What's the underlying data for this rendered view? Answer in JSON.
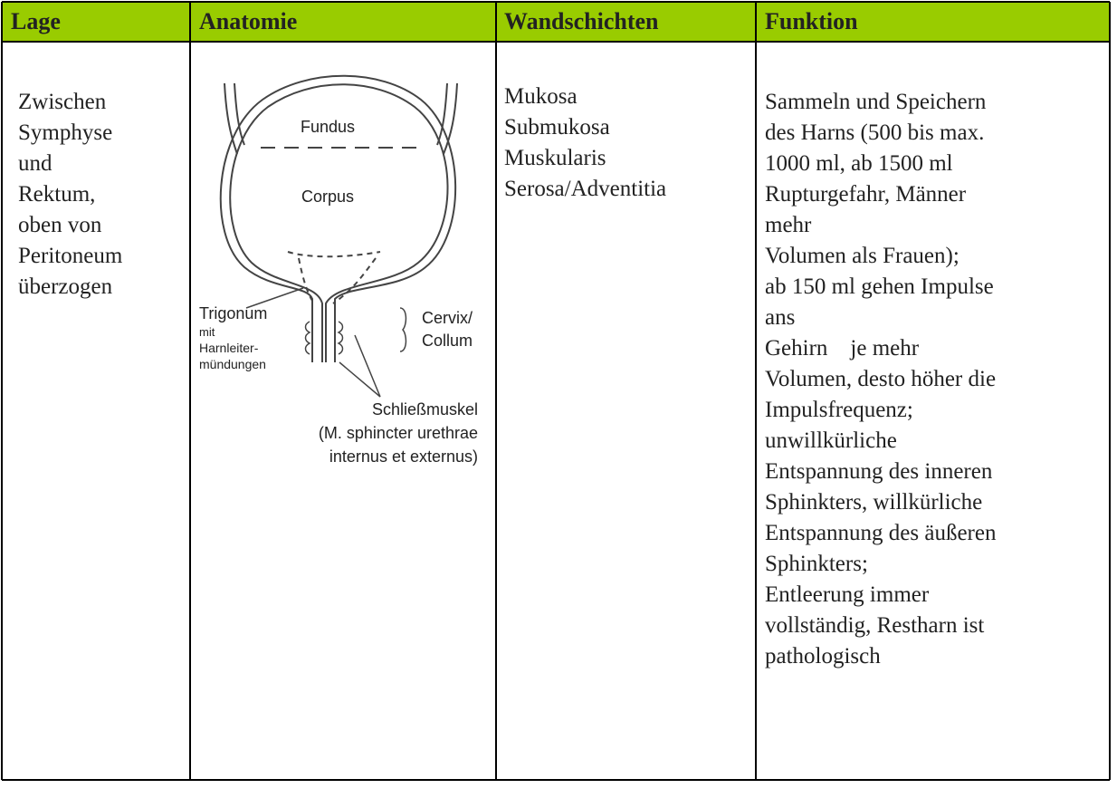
{
  "table": {
    "header": [
      "Lage",
      "Anatomie",
      "Wandschichten",
      "Funktion"
    ],
    "row": {
      "lage": [
        "Zwischen",
        "Symphyse",
        "und",
        "Rektum,",
        "oben von",
        "Peritoneum",
        "überzogen"
      ],
      "anatomie": [
        "Fundus",
        "Corpus",
        "Trigonum",
        "mit",
        "Harnleiter-",
        "mündungen",
        "Cervix/",
        "Collum",
        "Schließmuskel",
        "(M. sphincter urethrae",
        "internus et externus)"
      ],
      "wandschichten": [
        "Mukosa",
        "Submukosa",
        "Muskularis",
        "Serosa/Adventitia"
      ],
      "funktion": [
        "Sammeln und Speichern",
        "des Harns (500 bis max.",
        "1000 ml, ab 1500 ml",
        "Rupturgefahr, Männer",
        "mehr",
        "Volumen als Frauen);",
        "ab 150 ml gehen Impulse",
        "ans",
        "Gehirn    je mehr",
        "Volumen, desto höher die",
        "Impulsfrequenz;",
        "unwillkürliche",
        "Entspannung des inneren",
        "Sphinkters, willkürliche",
        "Entspannung des äußeren",
        "Sphinkters;",
        "Entleerung immer",
        "vollständig, Restharn ist",
        "pathologisch"
      ]
    }
  }
}
